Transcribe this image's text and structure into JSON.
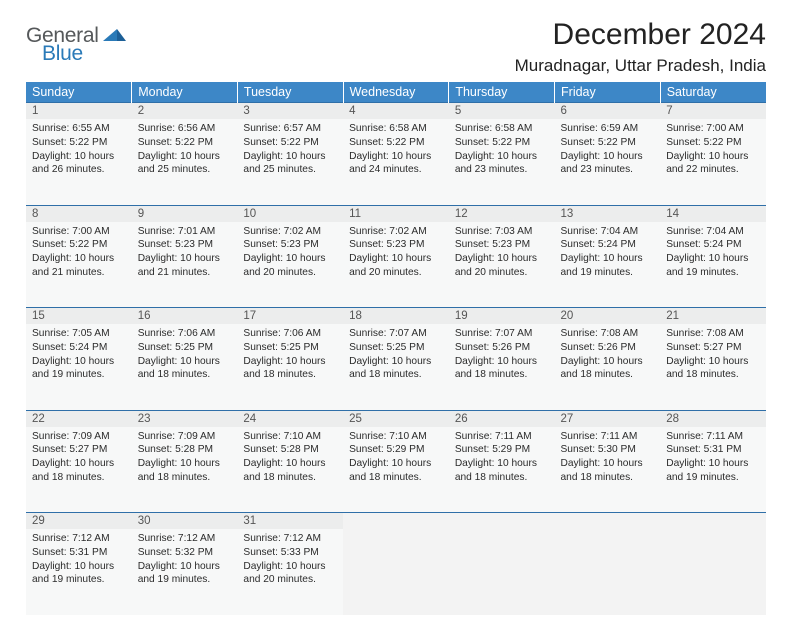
{
  "logo": {
    "word1": "General",
    "word2": "Blue"
  },
  "title": "December 2024",
  "location": "Muradnagar, Uttar Pradesh, India",
  "colors": {
    "header_bg": "#3d87c7",
    "header_text": "#ffffff",
    "date_underline": "#2f6fa8",
    "date_bg": "#eceded",
    "cell_bg": "#f7f8f8",
    "empty_bg": "#f3f3f3",
    "logo_gray": "#55585a",
    "logo_blue": "#2a7ab8"
  },
  "dayNames": [
    "Sunday",
    "Monday",
    "Tuesday",
    "Wednesday",
    "Thursday",
    "Friday",
    "Saturday"
  ],
  "days": [
    {
      "n": 1,
      "sr": "6:55 AM",
      "ss": "5:22 PM",
      "dl": "10 hours and 26 minutes."
    },
    {
      "n": 2,
      "sr": "6:56 AM",
      "ss": "5:22 PM",
      "dl": "10 hours and 25 minutes."
    },
    {
      "n": 3,
      "sr": "6:57 AM",
      "ss": "5:22 PM",
      "dl": "10 hours and 25 minutes."
    },
    {
      "n": 4,
      "sr": "6:58 AM",
      "ss": "5:22 PM",
      "dl": "10 hours and 24 minutes."
    },
    {
      "n": 5,
      "sr": "6:58 AM",
      "ss": "5:22 PM",
      "dl": "10 hours and 23 minutes."
    },
    {
      "n": 6,
      "sr": "6:59 AM",
      "ss": "5:22 PM",
      "dl": "10 hours and 23 minutes."
    },
    {
      "n": 7,
      "sr": "7:00 AM",
      "ss": "5:22 PM",
      "dl": "10 hours and 22 minutes."
    },
    {
      "n": 8,
      "sr": "7:00 AM",
      "ss": "5:22 PM",
      "dl": "10 hours and 21 minutes."
    },
    {
      "n": 9,
      "sr": "7:01 AM",
      "ss": "5:23 PM",
      "dl": "10 hours and 21 minutes."
    },
    {
      "n": 10,
      "sr": "7:02 AM",
      "ss": "5:23 PM",
      "dl": "10 hours and 20 minutes."
    },
    {
      "n": 11,
      "sr": "7:02 AM",
      "ss": "5:23 PM",
      "dl": "10 hours and 20 minutes."
    },
    {
      "n": 12,
      "sr": "7:03 AM",
      "ss": "5:23 PM",
      "dl": "10 hours and 20 minutes."
    },
    {
      "n": 13,
      "sr": "7:04 AM",
      "ss": "5:24 PM",
      "dl": "10 hours and 19 minutes."
    },
    {
      "n": 14,
      "sr": "7:04 AM",
      "ss": "5:24 PM",
      "dl": "10 hours and 19 minutes."
    },
    {
      "n": 15,
      "sr": "7:05 AM",
      "ss": "5:24 PM",
      "dl": "10 hours and 19 minutes."
    },
    {
      "n": 16,
      "sr": "7:06 AM",
      "ss": "5:25 PM",
      "dl": "10 hours and 18 minutes."
    },
    {
      "n": 17,
      "sr": "7:06 AM",
      "ss": "5:25 PM",
      "dl": "10 hours and 18 minutes."
    },
    {
      "n": 18,
      "sr": "7:07 AM",
      "ss": "5:25 PM",
      "dl": "10 hours and 18 minutes."
    },
    {
      "n": 19,
      "sr": "7:07 AM",
      "ss": "5:26 PM",
      "dl": "10 hours and 18 minutes."
    },
    {
      "n": 20,
      "sr": "7:08 AM",
      "ss": "5:26 PM",
      "dl": "10 hours and 18 minutes."
    },
    {
      "n": 21,
      "sr": "7:08 AM",
      "ss": "5:27 PM",
      "dl": "10 hours and 18 minutes."
    },
    {
      "n": 22,
      "sr": "7:09 AM",
      "ss": "5:27 PM",
      "dl": "10 hours and 18 minutes."
    },
    {
      "n": 23,
      "sr": "7:09 AM",
      "ss": "5:28 PM",
      "dl": "10 hours and 18 minutes."
    },
    {
      "n": 24,
      "sr": "7:10 AM",
      "ss": "5:28 PM",
      "dl": "10 hours and 18 minutes."
    },
    {
      "n": 25,
      "sr": "7:10 AM",
      "ss": "5:29 PM",
      "dl": "10 hours and 18 minutes."
    },
    {
      "n": 26,
      "sr": "7:11 AM",
      "ss": "5:29 PM",
      "dl": "10 hours and 18 minutes."
    },
    {
      "n": 27,
      "sr": "7:11 AM",
      "ss": "5:30 PM",
      "dl": "10 hours and 18 minutes."
    },
    {
      "n": 28,
      "sr": "7:11 AM",
      "ss": "5:31 PM",
      "dl": "10 hours and 19 minutes."
    },
    {
      "n": 29,
      "sr": "7:12 AM",
      "ss": "5:31 PM",
      "dl": "10 hours and 19 minutes."
    },
    {
      "n": 30,
      "sr": "7:12 AM",
      "ss": "5:32 PM",
      "dl": "10 hours and 19 minutes."
    },
    {
      "n": 31,
      "sr": "7:12 AM",
      "ss": "5:33 PM",
      "dl": "10 hours and 20 minutes."
    }
  ],
  "labels": {
    "sunrise": "Sunrise:",
    "sunset": "Sunset:",
    "daylight": "Daylight:"
  },
  "layout": {
    "startDayOfWeek": 0,
    "weeks": 5
  }
}
